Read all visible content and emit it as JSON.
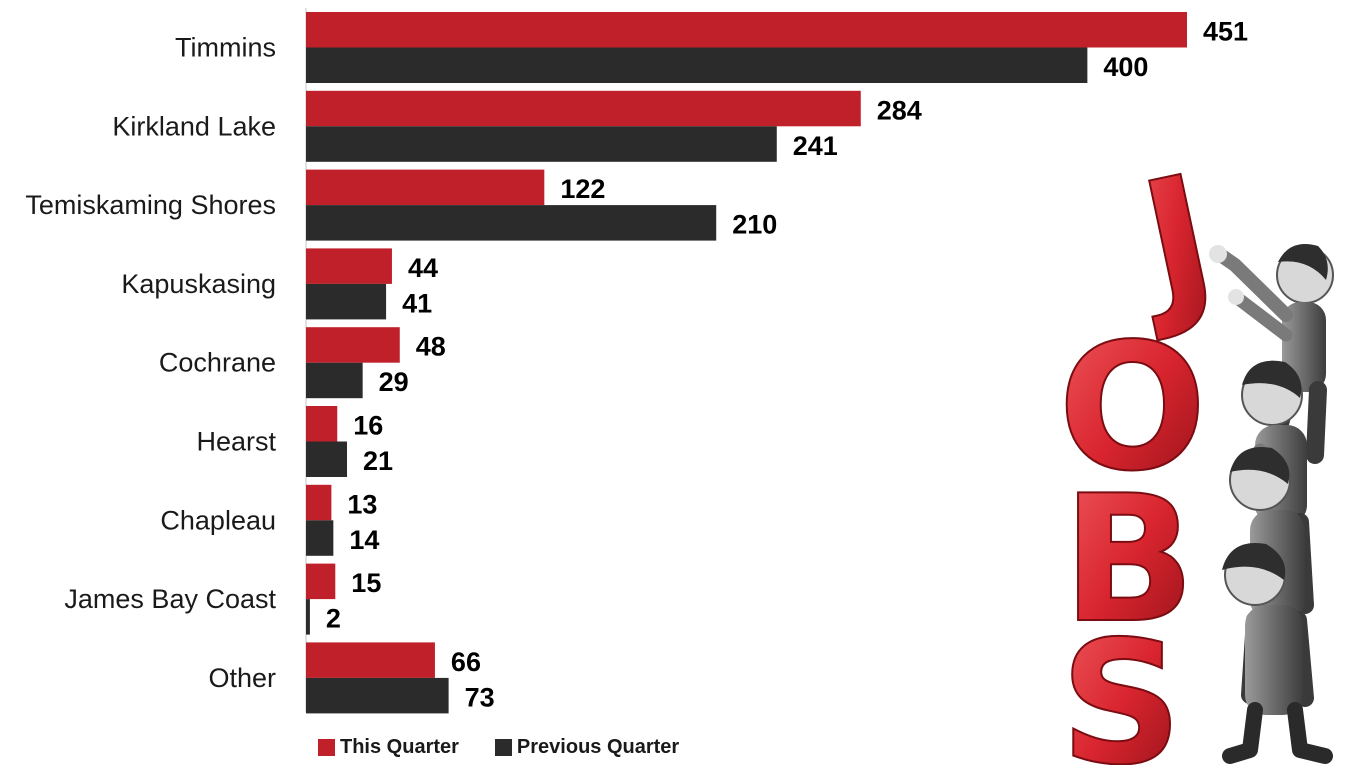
{
  "chart_data": {
    "type": "bar",
    "orientation": "horizontal",
    "categories": [
      "Timmins",
      "Kirkland Lake",
      "Temiskaming Shores",
      "Kapuskasing",
      "Cochrane",
      "Hearst",
      "Chapleau",
      "James Bay Coast",
      "Other"
    ],
    "series": [
      {
        "name": "This Quarter",
        "color": "#c0202a",
        "values": [
          451,
          284,
          122,
          44,
          48,
          16,
          13,
          15,
          66
        ]
      },
      {
        "name": "Previous Quarter",
        "color": "#2b2b2b",
        "values": [
          400,
          241,
          210,
          41,
          29,
          21,
          14,
          2,
          73
        ]
      }
    ],
    "title": "",
    "xlabel": "",
    "ylabel": "",
    "xlim": [
      0,
      451
    ],
    "grid": false,
    "legend_position": "bottom-left"
  },
  "illustration": {
    "letters": [
      "J",
      "O",
      "B",
      "S"
    ],
    "letter_color": "#d9252f"
  }
}
